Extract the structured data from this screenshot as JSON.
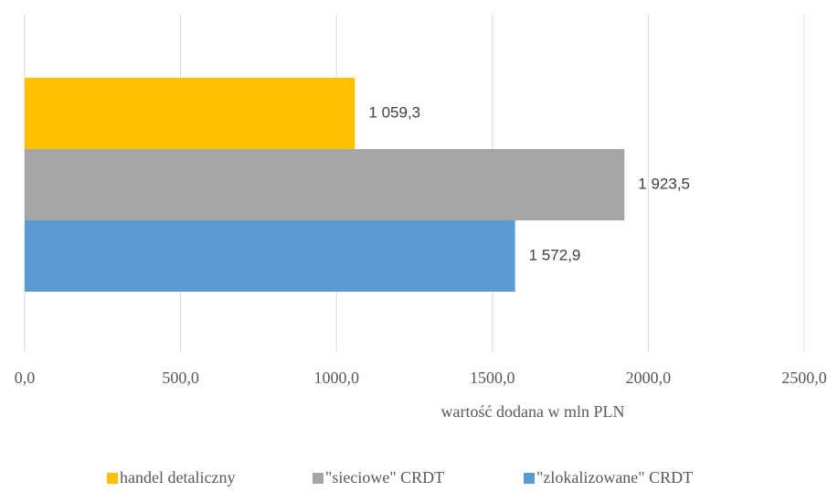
{
  "chart_data": {
    "type": "bar",
    "orientation": "horizontal",
    "categories": [
      null
    ],
    "series": [
      {
        "name": "handel detaliczny",
        "color": "#ffc000",
        "values": [
          1059.3
        ],
        "value_labels": [
          "1 059,3"
        ]
      },
      {
        "name": "\"sieciowe\" CRDT",
        "color": "#a5a5a5",
        "values": [
          1923.5
        ],
        "value_labels": [
          "1 923,5"
        ]
      },
      {
        "name": "\"zlokalizowane\" CRDT",
        "color": "#5b9bd5",
        "values": [
          1572.9
        ],
        "value_labels": [
          "1 572,9"
        ]
      }
    ],
    "xlabel": "wartość dodana w mln PLN",
    "xlim": [
      0,
      2500
    ],
    "xticks": [
      {
        "value": 0,
        "label": "0,0"
      },
      {
        "value": 500,
        "label": "500,0"
      },
      {
        "value": 1000,
        "label": "1000,0"
      },
      {
        "value": 1500,
        "label": "1500,0"
      },
      {
        "value": 2000,
        "label": "2000,0"
      },
      {
        "value": 2500,
        "label": "2500,0"
      }
    ],
    "grid": true,
    "legend": "bottom"
  }
}
